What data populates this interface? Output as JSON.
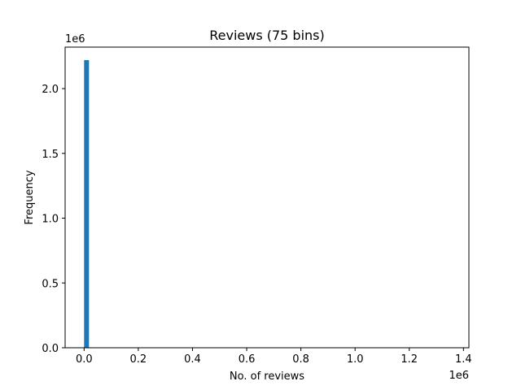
{
  "chart_data": {
    "type": "bar",
    "title": "Reviews (75 bins)",
    "xlabel": "No. of reviews",
    "ylabel": "Frequency",
    "x_offset_label": "1e6",
    "y_offset_label": "1e6",
    "bins": 75,
    "xlim": [
      -70000,
      1420000
    ],
    "ylim": [
      0,
      2320000
    ],
    "x_ticks": [
      0,
      200000,
      400000,
      600000,
      800000,
      1000000,
      1200000,
      1400000
    ],
    "x_tick_labels": [
      "0.0",
      "0.2",
      "0.4",
      "0.6",
      "0.8",
      "1.0",
      "1.2",
      "1.4"
    ],
    "y_ticks": [
      0,
      500000,
      1000000,
      1500000,
      2000000
    ],
    "y_tick_labels": [
      "0.0",
      "0.5",
      "1.0",
      "1.5",
      "2.0"
    ],
    "bar_color": "#1f77b4",
    "series": [
      {
        "x_start": 0,
        "x_end": 18000,
        "value": 2220000
      }
    ],
    "grid": false
  }
}
